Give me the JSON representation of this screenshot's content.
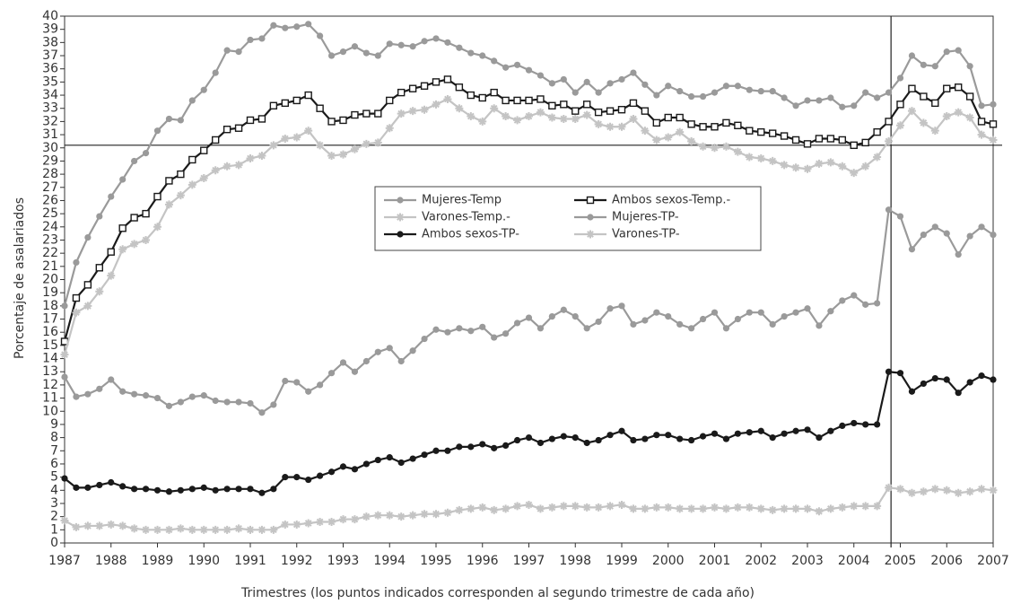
{
  "chart_data": {
    "type": "line",
    "xlabel": "Trimestres (los puntos indicados corresponden al segundo trimestre de cada año)",
    "ylabel": "Porcentaje de asalariados",
    "x": [
      1987,
      1987.25,
      1987.5,
      1987.75,
      1988,
      1988.25,
      1988.5,
      1988.75,
      1989,
      1989.25,
      1989.5,
      1989.75,
      1990,
      1990.25,
      1990.5,
      1990.75,
      1991,
      1991.25,
      1991.5,
      1991.75,
      1992,
      1992.25,
      1992.5,
      1992.75,
      1993,
      1993.25,
      1993.5,
      1993.75,
      1994,
      1994.25,
      1994.5,
      1994.75,
      1995,
      1995.25,
      1995.5,
      1995.75,
      1996,
      1996.25,
      1996.5,
      1996.75,
      1997,
      1997.25,
      1997.5,
      1997.75,
      1998,
      1998.25,
      1998.5,
      1998.75,
      1999,
      1999.25,
      1999.5,
      1999.75,
      2000,
      2000.25,
      2000.5,
      2000.75,
      2001,
      2001.25,
      2001.5,
      2001.75,
      2002,
      2002.25,
      2002.5,
      2002.75,
      2003,
      2003.25,
      2003.5,
      2003.75,
      2004,
      2004.25,
      2004.5,
      2004.75,
      2005,
      2005.25,
      2005.5,
      2005.75,
      2006,
      2006.25,
      2006.5,
      2006.75,
      2007
    ],
    "series": [
      {
        "name": "Mujeres-Temp",
        "color": "#9a9a9a",
        "marker": "circle",
        "values": [
          18,
          21.3,
          23.2,
          24.8,
          26.3,
          27.6,
          29,
          29.6,
          31.3,
          32.2,
          32.1,
          33.6,
          34.4,
          35.7,
          37.4,
          37.3,
          38.2,
          38.3,
          39.3,
          39.1,
          39.2,
          39.4,
          38.5,
          37,
          37.3,
          37.7,
          37.2,
          37,
          37.9,
          37.8,
          37.7,
          38.1,
          38.3,
          38,
          37.6,
          37.2,
          37,
          36.6,
          36.1,
          36.3,
          35.9,
          35.5,
          34.9,
          35.2,
          34.2,
          35,
          34.2,
          34.9,
          35.2,
          35.7,
          34.8,
          34,
          34.7,
          34.3,
          33.9,
          33.9,
          34.2,
          34.7,
          34.7,
          34.4,
          34.3,
          34.3,
          33.8,
          33.2,
          33.6,
          33.6,
          33.8,
          33.1,
          33.2,
          34.2,
          33.8,
          34.2,
          35.3,
          37,
          36.3,
          36.2,
          37.3,
          37.4,
          36.2,
          33.2,
          33.3
        ]
      },
      {
        "name": "Ambos sexos-Temp.-",
        "color": "#1a1a1a",
        "marker": "square",
        "values": [
          15.3,
          18.6,
          19.6,
          20.9,
          22.1,
          23.9,
          24.7,
          25,
          26.3,
          27.5,
          28,
          29.1,
          29.8,
          30.6,
          31.4,
          31.5,
          32.1,
          32.2,
          33.2,
          33.4,
          33.6,
          34,
          33,
          32,
          32.1,
          32.5,
          32.6,
          32.6,
          33.6,
          34.2,
          34.5,
          34.7,
          35,
          35.2,
          34.6,
          34,
          33.8,
          34.2,
          33.6,
          33.6,
          33.6,
          33.7,
          33.2,
          33.3,
          32.8,
          33.3,
          32.7,
          32.8,
          32.9,
          33.4,
          32.8,
          31.9,
          32.3,
          32.3,
          31.8,
          31.6,
          31.6,
          31.9,
          31.7,
          31.3,
          31.2,
          31.1,
          30.9,
          30.6,
          30.3,
          30.7,
          30.7,
          30.6,
          30.2,
          30.4,
          31.2,
          32,
          33.3,
          34.5,
          33.9,
          33.4,
          34.5,
          34.6,
          33.9,
          32,
          31.8
        ]
      },
      {
        "name": "Varones-Temp.-",
        "color": "#c4c4c4",
        "marker": "star",
        "values": [
          14.3,
          17.5,
          18,
          19.1,
          20.3,
          22.3,
          22.7,
          23,
          24,
          25.7,
          26.4,
          27.2,
          27.7,
          28.3,
          28.6,
          28.7,
          29.2,
          29.4,
          30.2,
          30.7,
          30.8,
          31.3,
          30.2,
          29.4,
          29.5,
          29.9,
          30.3,
          30.4,
          31.5,
          32.6,
          32.8,
          32.9,
          33.3,
          33.7,
          33,
          32.4,
          32,
          33,
          32.4,
          32.1,
          32.4,
          32.7,
          32.3,
          32.2,
          32.2,
          32.5,
          31.8,
          31.6,
          31.6,
          32.2,
          31.3,
          30.6,
          30.8,
          31.2,
          30.5,
          30.1,
          30,
          30.1,
          29.7,
          29.3,
          29.2,
          29,
          28.7,
          28.5,
          28.4,
          28.8,
          28.9,
          28.6,
          28.1,
          28.6,
          29.3,
          30.5,
          31.7,
          32.8,
          31.9,
          31.3,
          32.4,
          32.7,
          32.3,
          31,
          30.6
        ]
      },
      {
        "name": "Mujeres-TP-",
        "color": "#9a9a9a",
        "marker": "circle",
        "values": [
          12.6,
          11.1,
          11.3,
          11.7,
          12.4,
          11.5,
          11.3,
          11.2,
          11,
          10.4,
          10.7,
          11.1,
          11.2,
          10.8,
          10.7,
          10.7,
          10.6,
          9.9,
          10.5,
          12.3,
          12.2,
          11.5,
          12,
          12.9,
          13.7,
          13,
          13.8,
          14.5,
          14.8,
          13.8,
          14.6,
          15.5,
          16.2,
          16,
          16.3,
          16.1,
          16.4,
          15.6,
          15.9,
          16.7,
          17.1,
          16.3,
          17.2,
          17.7,
          17.2,
          16.3,
          16.8,
          17.8,
          18,
          16.6,
          16.9,
          17.5,
          17.2,
          16.6,
          16.3,
          17,
          17.5,
          16.3,
          17,
          17.5,
          17.5,
          16.6,
          17.2,
          17.5,
          17.8,
          16.5,
          17.6,
          18.4,
          18.8,
          18.1,
          18.2,
          25.3,
          24.8,
          22.3,
          23.4,
          24,
          23.5,
          21.9,
          23.3,
          24,
          23.4
        ]
      },
      {
        "name": "Ambos sexos-TP-",
        "color": "#1a1a1a",
        "marker": "circle",
        "values": [
          4.9,
          4.2,
          4.2,
          4.4,
          4.6,
          4.3,
          4.1,
          4.1,
          4,
          3.9,
          4,
          4.1,
          4.2,
          4,
          4.1,
          4.1,
          4.1,
          3.8,
          4.1,
          5,
          5,
          4.8,
          5.1,
          5.4,
          5.8,
          5.6,
          6,
          6.3,
          6.5,
          6.1,
          6.4,
          6.7,
          7,
          7,
          7.3,
          7.3,
          7.5,
          7.2,
          7.4,
          7.8,
          8,
          7.6,
          7.9,
          8.1,
          8,
          7.6,
          7.8,
          8.2,
          8.5,
          7.8,
          7.9,
          8.2,
          8.2,
          7.9,
          7.8,
          8.1,
          8.3,
          7.9,
          8.3,
          8.4,
          8.5,
          8,
          8.3,
          8.5,
          8.6,
          8,
          8.5,
          8.9,
          9.1,
          9,
          9,
          13,
          12.9,
          11.5,
          12.1,
          12.5,
          12.4,
          11.4,
          12.2,
          12.7,
          12.4
        ]
      },
      {
        "name": "Varones-TP-",
        "color": "#c4c4c4",
        "marker": "star",
        "values": [
          1.7,
          1.2,
          1.3,
          1.3,
          1.4,
          1.3,
          1.1,
          1,
          1,
          1,
          1.1,
          1,
          1,
          1,
          1,
          1.1,
          1,
          1,
          1,
          1.4,
          1.4,
          1.5,
          1.6,
          1.6,
          1.8,
          1.8,
          2,
          2.1,
          2.1,
          2,
          2.1,
          2.2,
          2.2,
          2.3,
          2.5,
          2.6,
          2.7,
          2.5,
          2.6,
          2.8,
          2.9,
          2.6,
          2.7,
          2.8,
          2.8,
          2.7,
          2.7,
          2.8,
          2.9,
          2.6,
          2.6,
          2.7,
          2.7,
          2.6,
          2.6,
          2.6,
          2.7,
          2.6,
          2.7,
          2.7,
          2.6,
          2.5,
          2.6,
          2.6,
          2.6,
          2.4,
          2.6,
          2.7,
          2.8,
          2.8,
          2.8,
          4.2,
          4.1,
          3.8,
          3.9,
          4.1,
          4,
          3.8,
          3.9,
          4.1,
          4
        ]
      }
    ],
    "xlim": [
      1987,
      2007
    ],
    "ylim": [
      0,
      40
    ],
    "xticks": [
      1987,
      1988,
      1989,
      1990,
      1991,
      1992,
      1993,
      1994,
      1995,
      1996,
      1997,
      1998,
      1999,
      2000,
      2001,
      2002,
      2003,
      2004,
      2005,
      2006,
      2007
    ],
    "yticks": [
      0,
      1,
      2,
      3,
      4,
      5,
      6,
      7,
      8,
      9,
      10,
      11,
      12,
      13,
      14,
      15,
      16,
      17,
      18,
      19,
      20,
      21,
      22,
      23,
      24,
      25,
      26,
      27,
      28,
      29,
      30,
      31,
      32,
      33,
      34,
      35,
      36,
      37,
      38,
      39,
      40
    ],
    "reference_lines": {
      "x": 2004.8,
      "y": 30.2
    },
    "legend": "center"
  }
}
